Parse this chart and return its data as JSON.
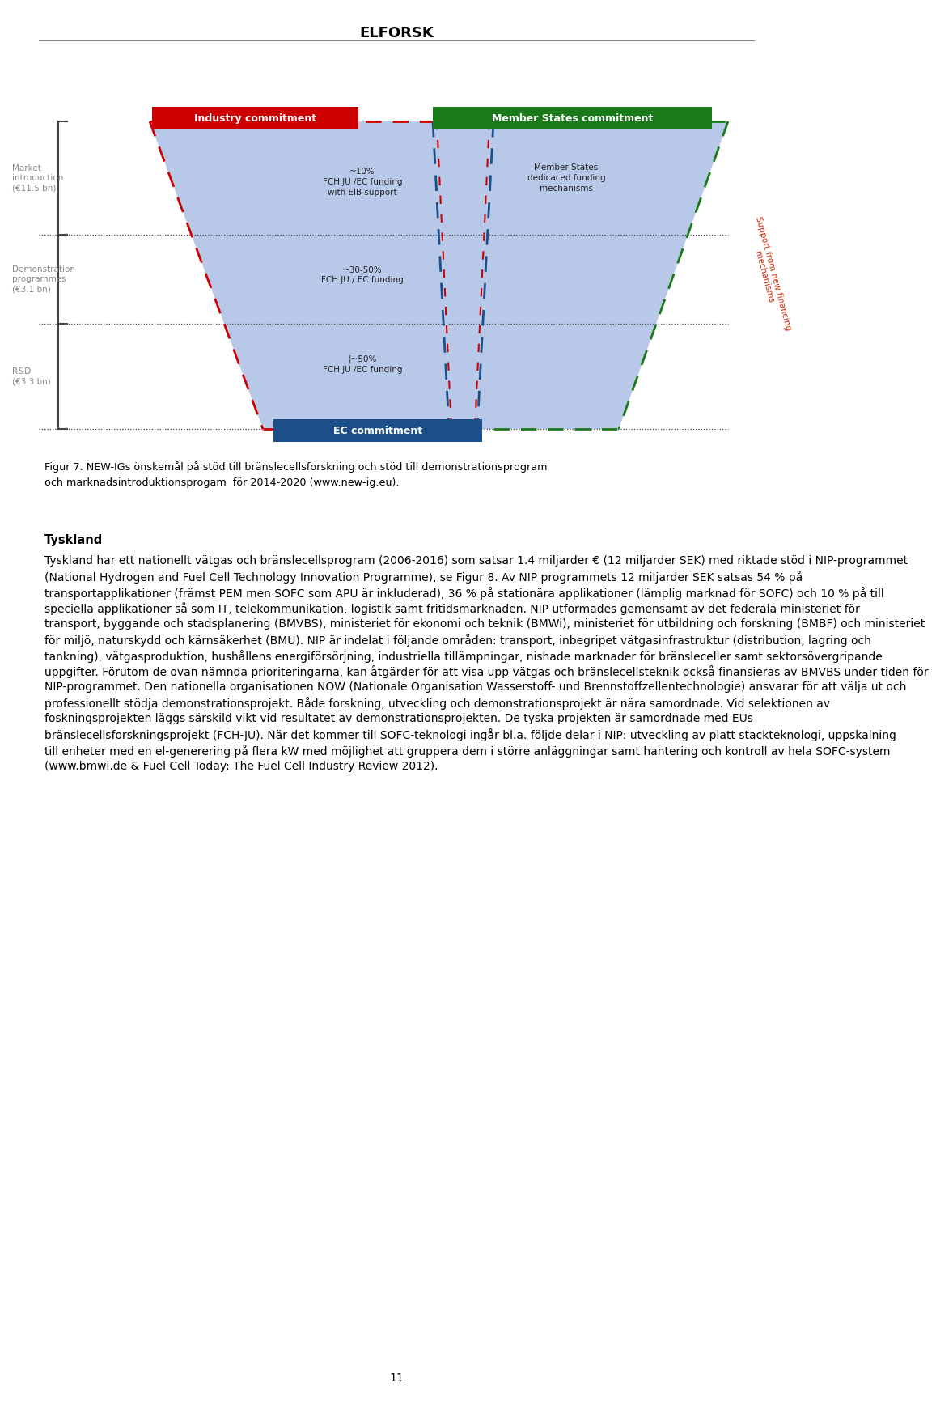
{
  "page_title": "ELFORSK",
  "page_number": "11",
  "background_color": "#ffffff",
  "figure_caption_line1": "Figur 7. NEW-IGs önskemål på stöd till bränslecellsforskning och stöd till demonstrationsprogram",
  "figure_caption_line2": "och marknadsintroduktionsprogam  för 2014-2020 (www.new-ig.eu).",
  "section_title": "Tyskland",
  "body_lines": [
    "Tyskland har ett nationellt vätgas och bränslecellsprogram (2006-2016) som satsar 1.4 miljarder € (12 miljarder SEK) med riktade stöd i NIP-programmet",
    "(National Hydrogen and Fuel Cell Technology Innovation Programme), se Figur 8. Av NIP programmets 12 miljarder SEK satsas 54 % på",
    "transportapplikationer (främst PEM men SOFC som APU är inkluderad), 36 % på stationära applikationer (lämplig marknad för SOFC) och 10 % på till",
    "speciella applikationer så som IT, telekommunikation, logistik samt fritidsmarknaden. NIP utformades gemensamt av det federala ministeriet för",
    "transport, byggande och stadsplanering (BMVBS), ministeriet för ekonomi och teknik (BMWi), ministeriet för utbildning och forskning (BMBF) och ministeriet",
    "för miljö, naturskydd och kärnsäkerhet (BMU). NIP är indelat i följande områden: transport, inbegripet vätgasinfrastruktur (distribution, lagring och",
    "tankning), vätgasproduktion, hushållens energiförsörjning, industriella tillämpningar, nishade marknader för bränsleceller samt sektorsövergripande",
    "uppgifter. Förutom de ovan nämnda prioriteringarna, kan åtgärder för att visa upp vätgas och bränslecellsteknik också finansieras av BMVBS under tiden för",
    "NIP-programmet. Den nationella organisationen NOW (Nationale Organisation Wasserstoff- und Brennstoffzellentechnologie) ansvarar för att välja ut och",
    "professionellt stödja demonstrationsprojekt. Både forskning, utveckling och demonstrationsprojekt är nära samordnade. Vid selektionen av",
    "foskningsprojekten läggs särskild vikt vid resultatet av demonstrationsprojekten. De tyska projekten är samordnade med EUs",
    "bränslecellsforskningsprojekt (FCH-JU). När det kommer till SOFC-teknologi ingår bl.a. följde delar i NIP: utveckling av platt stackteknologi, uppskalning",
    "till enheter med en el-generering på flera kW med möjlighet att gruppera dem i större anläggningar samt hantering och kontroll av hela SOFC-system",
    "(www.bmwi.de & Fuel Cell Today: The Fuel Cell Industry Review 2012)."
  ],
  "funnel_fill": "#b8c8e8",
  "funnel_outline_red": "#cc0000",
  "funnel_outline_green": "#1a7a1a",
  "funnel_outline_blue": "#1a4f8a",
  "label_red_bg": "#cc0000",
  "label_green_bg": "#1a7a1a",
  "label_blue_bg": "#1a4f8a",
  "side_label_color": "#cc2200"
}
